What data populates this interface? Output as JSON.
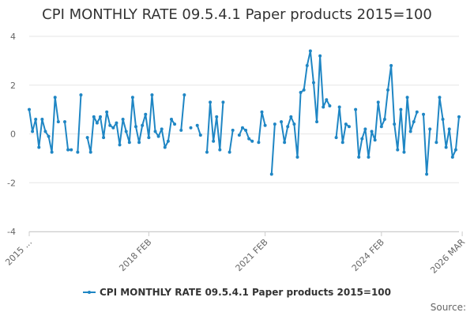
{
  "chart_data": {
    "type": "line",
    "title": "CPI MONTHLY RATE 09.5.4.1 Paper products 2015=100",
    "xlabel": "",
    "ylabel": "",
    "ylim": [
      -4,
      4
    ],
    "y_ticks": [
      -4,
      -2,
      0,
      2,
      4
    ],
    "x_tick_labels": [
      "2015 ...",
      "2018 FEB",
      "2021 FEB",
      "2024 FEB",
      "2026 MAR"
    ],
    "x_tick_months": [
      0,
      37,
      73,
      109,
      134
    ],
    "grid": true,
    "legend_position": "bottom",
    "source_label": "Source:",
    "series": [
      {
        "name": "CPI MONTHLY RATE 09.5.4.1 Paper products 2015=100",
        "color": "#1f86c4",
        "start": "2015 JAN",
        "values": [
          1.0,
          0.1,
          0.6,
          -0.55,
          0.6,
          0.1,
          -0.1,
          -0.75,
          1.5,
          0.5,
          null,
          0.5,
          -0.65,
          -0.65,
          null,
          -0.75,
          1.6,
          null,
          -0.15,
          -0.75,
          0.7,
          0.45,
          0.7,
          -0.15,
          0.9,
          0.35,
          0.25,
          0.45,
          -0.45,
          0.6,
          0.1,
          -0.35,
          1.5,
          0.3,
          -0.35,
          0.35,
          0.8,
          -0.15,
          1.6,
          0.1,
          -0.1,
          0.2,
          -0.55,
          -0.3,
          0.6,
          0.4,
          null,
          0.15,
          1.6,
          null,
          0.25,
          null,
          0.35,
          -0.05,
          null,
          -0.75,
          1.3,
          -0.3,
          0.7,
          -0.65,
          1.3,
          null,
          -0.75,
          0.15,
          null,
          -0.05,
          0.25,
          0.15,
          -0.2,
          -0.3,
          null,
          -0.35,
          0.9,
          0.35,
          null,
          -1.65,
          0.4,
          null,
          0.5,
          -0.35,
          0.3,
          0.7,
          0.4,
          -0.95,
          1.7,
          1.8,
          2.8,
          3.4,
          2.1,
          0.5,
          3.2,
          1.1,
          1.4,
          1.15,
          null,
          -0.15,
          1.1,
          -0.35,
          0.4,
          0.3,
          null,
          1.0,
          -0.95,
          -0.2,
          0.2,
          -0.95,
          0.1,
          -0.25,
          1.3,
          0.3,
          0.6,
          1.8,
          2.8,
          0.4,
          -0.65,
          1.0,
          -0.75,
          1.5,
          0.1,
          0.5,
          0.9,
          null,
          0.8,
          -1.65,
          0.2,
          null,
          -0.35,
          1.5,
          0.6,
          -0.55,
          0.2,
          -0.95,
          -0.65,
          0.7
        ]
      }
    ]
  }
}
